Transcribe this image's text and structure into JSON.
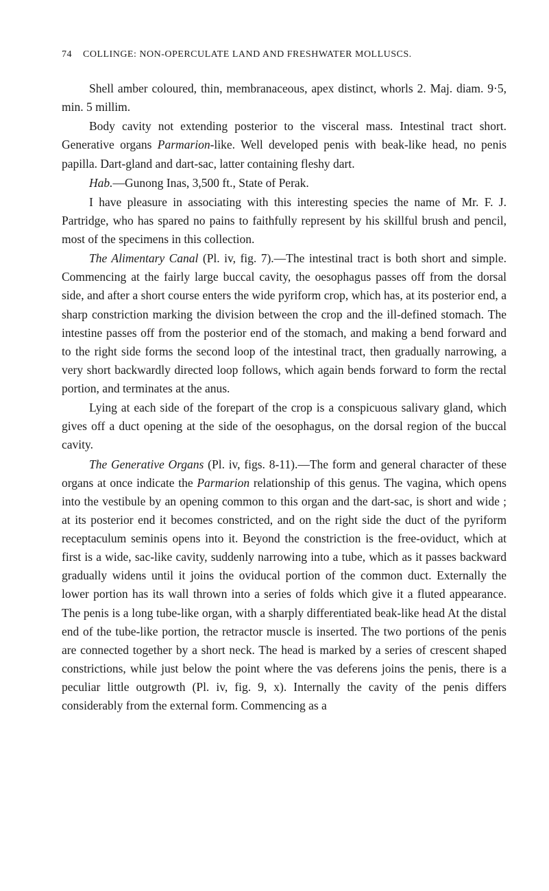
{
  "header": {
    "page_number": "74",
    "running_title": "COLLINGE: NON-OPERCULATE LAND AND FRESHWATER MOLLUSCS."
  },
  "paragraphs": {
    "p1": "Shell amber coloured, thin, membranaceous, apex distinct, whorls 2. Maj. diam. 9·5, min. 5 millim.",
    "p2_a": "Body cavity not extending posterior to the visceral mass. Intestinal tract short. Generative organs ",
    "p2_b": "Parmarion",
    "p2_c": "-like. Well developed penis with beak-like head, no penis papilla. Dart-gland and dart-sac, latter containing fleshy dart.",
    "p3_a": "Hab.",
    "p3_b": "—Gunong Inas, 3,500 ft., State of Perak.",
    "p4": "I have pleasure in associating with this interesting species the name of Mr. F. J. Partridge, who has spared no pains to faithfully represent by his skillful brush and pencil, most of the specimens in this collection.",
    "p5_a": "The Alimentary Canal ",
    "p5_b": "(Pl. iv, fig. 7).—The intestinal tract is both short and simple. Commencing at the fairly large buccal cavity, the oesophagus passes off from the dorsal side, and after a short course enters the wide pyriform crop, which has, at its posterior end, a sharp constriction marking the division between the crop and the ill-defined stomach. The intestine passes off from the posterior end of the stomach, and making a bend forward and to the right side forms the second loop of the intestinal tract, then gradually narrowing, a very short backwardly directed loop follows, which again bends forward to form the rectal portion, and terminates at the anus.",
    "p6": "Lying at each side of the forepart of the crop is a conspicuous salivary gland, which gives off a duct opening at the side of the oesophagus, on the dorsal region of the buccal cavity.",
    "p7_a": "The Generative Organs ",
    "p7_b": "(Pl. iv, figs. 8-11).—The form and general character of these organs at once indicate the ",
    "p7_c": "Parmarion",
    "p7_d": " relationship of this genus. The vagina, which opens into the vestibule by an opening common to this organ and the dart-sac, is short and wide ; at its posterior end it becomes constricted, and on the right side the duct of the pyriform receptaculum seminis opens into it. Beyond the constriction is the free-oviduct, which at first is a wide, sac-like cavity, suddenly narrowing into a tube, which as it passes backward gradually widens until it joins the oviducal portion of the common duct. Externally the lower portion has its wall thrown into a series of folds which give it a fluted appearance. The penis is a long tube-like organ, with a sharply differentiated beak-like head At the distal end of the tube-like portion, the retractor muscle is inserted. The two portions of the penis are connected together by a short neck. The head is marked by a series of crescent shaped constrictions, while just below the point where the vas deferens joins the penis, there is a peculiar little outgrowth (Pl. iv, fig. 9, x). Internally the cavity of the penis differs considerably from the external form. Commencing as a"
  },
  "styles": {
    "text_color": "#1a1a1a",
    "background_color": "#ffffff",
    "body_font_size": 17.5,
    "header_font_size": 14,
    "line_height": 1.55
  }
}
